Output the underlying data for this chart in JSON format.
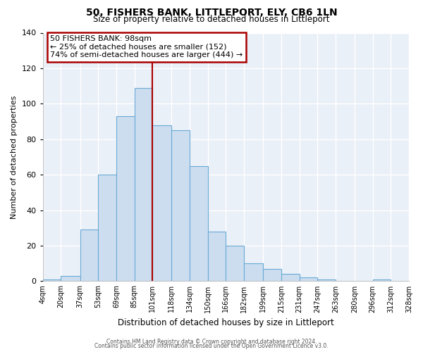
{
  "title": "50, FISHERS BANK, LITTLEPORT, ELY, CB6 1LN",
  "subtitle": "Size of property relative to detached houses in Littleport",
  "xlabel": "Distribution of detached houses by size in Littleport",
  "ylabel": "Number of detached properties",
  "bar_color": "#ccddf0",
  "bar_edge_color": "#6aaad4",
  "background_color": "#eaf0f8",
  "grid_color": "#ffffff",
  "annotation_box_color": "#ffffff",
  "annotation_box_edge": "#aa0000",
  "vline_color": "#aa0000",
  "vline_x": 101,
  "annotation_title": "50 FISHERS BANK: 98sqm",
  "annotation_line1": "← 25% of detached houses are smaller (152)",
  "annotation_line2": "74% of semi-detached houses are larger (444) →",
  "bin_edges": [
    4,
    20,
    37,
    53,
    69,
    85,
    101,
    118,
    134,
    150,
    166,
    182,
    199,
    215,
    231,
    247,
    263,
    280,
    296,
    312,
    328
  ],
  "bin_labels": [
    "4sqm",
    "20sqm",
    "37sqm",
    "53sqm",
    "69sqm",
    "85sqm",
    "101sqm",
    "118sqm",
    "134sqm",
    "150sqm",
    "166sqm",
    "182sqm",
    "199sqm",
    "215sqm",
    "231sqm",
    "247sqm",
    "263sqm",
    "280sqm",
    "296sqm",
    "312sqm",
    "328sqm"
  ],
  "bar_heights": [
    1,
    3,
    29,
    60,
    93,
    109,
    88,
    85,
    65,
    28,
    20,
    10,
    7,
    4,
    2,
    1,
    0,
    0,
    1,
    0
  ],
  "ylim": [
    0,
    140
  ],
  "yticks": [
    0,
    20,
    40,
    60,
    80,
    100,
    120,
    140
  ],
  "footer1": "Contains HM Land Registry data © Crown copyright and database right 2024.",
  "footer2": "Contains public sector information licensed under the Open Government Licence v3.0."
}
